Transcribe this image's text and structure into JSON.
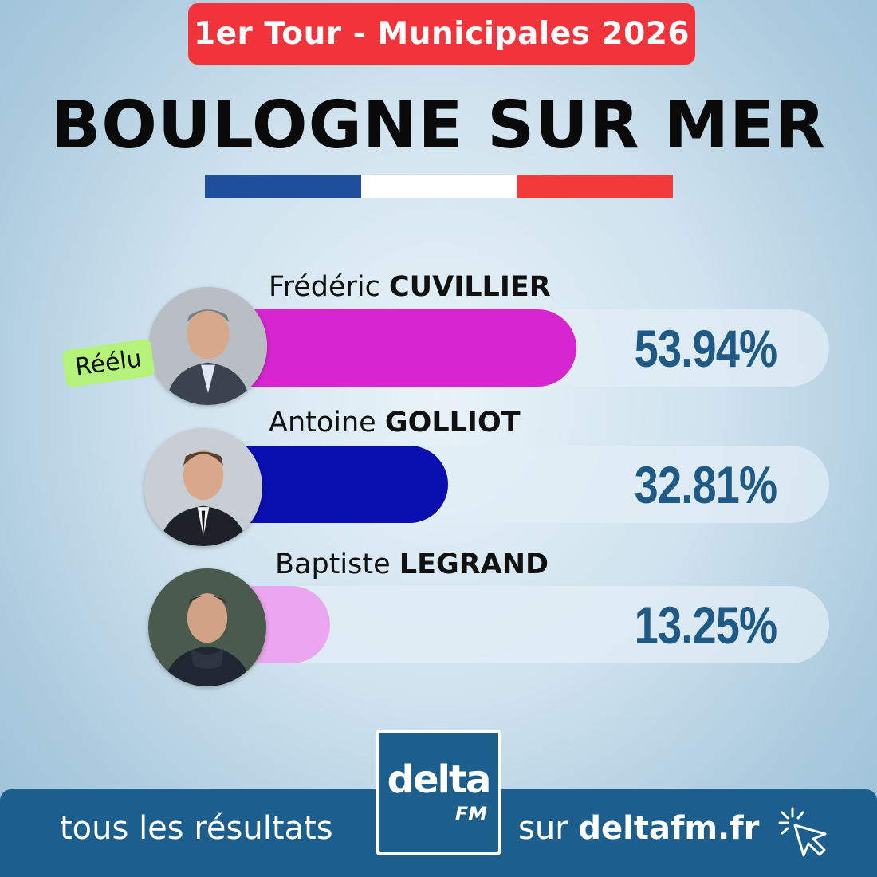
{
  "header": {
    "round_label": "1er Tour - Municipales 2026",
    "city": "BOULOGNE SUR MER"
  },
  "flag_colors": [
    "#1f4f9c",
    "#ffffff",
    "#f23a3a"
  ],
  "candidates": [
    {
      "first_name": "Frédéric",
      "last_name": "CUVILLIER",
      "percent_label": "53.94%",
      "share": 53.94,
      "bar_color": "#d726cf",
      "badge": "Réélu"
    },
    {
      "first_name": "Antoine",
      "last_name": "GOLLIOT",
      "percent_label": "32.81%",
      "share": 32.81,
      "bar_color": "#0a0fb0"
    },
    {
      "first_name": "Baptiste",
      "last_name": "LEGRAND",
      "percent_label": "13.25%",
      "share": 13.25,
      "bar_color": "#eaa6ef"
    }
  ],
  "footer": {
    "left_text": "tous les résultats",
    "right_prefix": "sur",
    "site": "deltafm.fr",
    "logo_main": "delta",
    "logo_sub": "FM"
  },
  "icons": [
    "candidate-photo-icon",
    "click-cursor-icon"
  ]
}
